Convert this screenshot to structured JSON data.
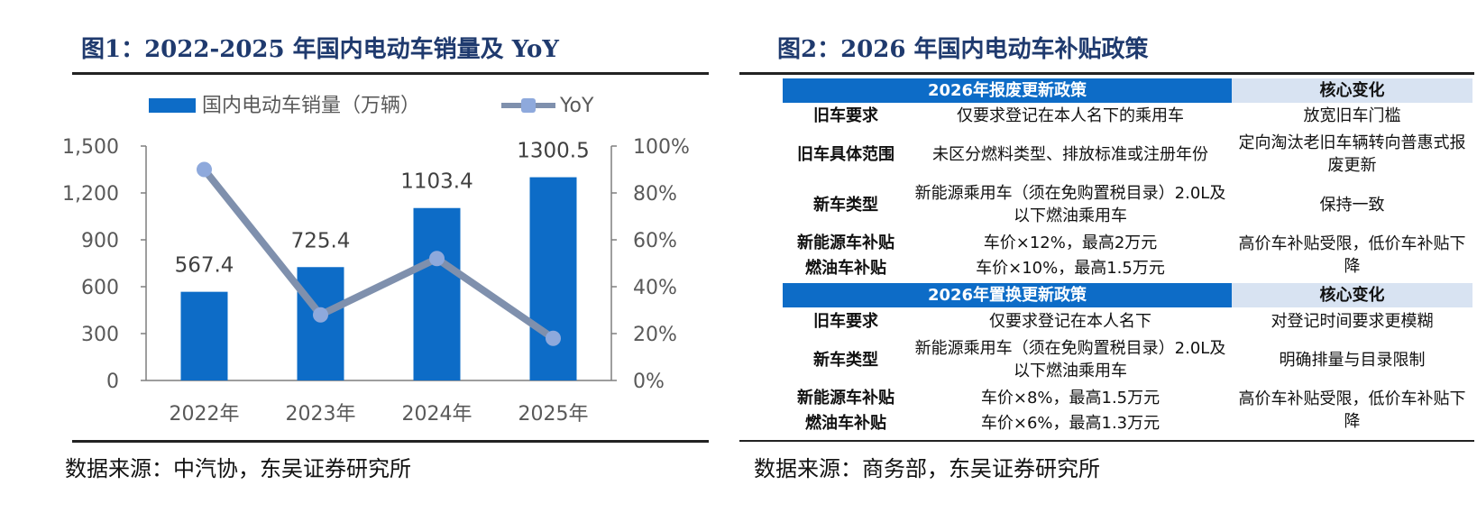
{
  "left": {
    "title": "图1：2022-2025 年国内电动车销量及 YoY",
    "source": "数据来源：中汽协，东吴证券研究所"
  },
  "right": {
    "title": "图2：2026 年国内电动车补贴政策",
    "source": "数据来源：商务部，东吴证券研究所",
    "table1": {
      "header": "2026年报废更新政策",
      "side_header": "核心变化",
      "rows": [
        {
          "label": "旧车要求",
          "policy": "仅要求登记在本人名下的乘用车",
          "change": "放宽旧车门槛"
        },
        {
          "label": "旧车具体范围",
          "policy": "未区分燃料类型、排放标准或注册年份",
          "change": "定向淘汰老旧车辆转向普惠式报废更新"
        },
        {
          "label": "新车类型",
          "policy": "新能源乘用车（须在免购置税目录）2.0L及以下燃油乘用车",
          "change": "保持一致"
        },
        {
          "label": "新能源车补贴",
          "policy": "车价×12%，最高2万元",
          "change": "高价车补贴受限，低价车补贴下降"
        },
        {
          "label": "燃油车补贴",
          "policy": "车价×10%，最高1.5万元",
          "change": ""
        }
      ]
    },
    "table2": {
      "header": "2026年置换更新政策",
      "side_header": "核心变化",
      "rows": [
        {
          "label": "旧车要求",
          "policy": "仅要求登记在本人名下",
          "change": "对登记时间要求更模糊"
        },
        {
          "label": "新车类型",
          "policy": "新能源乘用车（须在免购置税目录）2.0L及以下燃油乘用车",
          "change": "明确排量与目录限制"
        },
        {
          "label": "新能源车补贴",
          "policy": "车价×8%，最高1.5万元",
          "change": "高价车补贴受限，低价车补贴下降"
        },
        {
          "label": "燃油车补贴",
          "policy": "车价×6%，最高1.3万元",
          "change": ""
        }
      ]
    }
  },
  "colors": {
    "bar": "#0d6cc7",
    "line": "#7f90ad",
    "marker": "#8ea9dc",
    "title": "#1f3a6e",
    "header_blue": "#0d6cc7",
    "header_light": "#d8e3f2"
  },
  "chart_data": {
    "type": "bar",
    "categories": [
      "2022年",
      "2023年",
      "2024年",
      "2025年"
    ],
    "series": [
      {
        "name": "国内电动车销量（万辆）",
        "type": "bar",
        "axis": "left",
        "values": [
          567.4,
          725.4,
          1103.4,
          1300.5
        ],
        "labels": [
          "567.4",
          "725.4",
          "1103.4",
          "1300.5"
        ]
      },
      {
        "name": "YoY",
        "type": "line",
        "axis": "right",
        "values": [
          90,
          28,
          52,
          18
        ]
      }
    ],
    "y_left": {
      "range": [
        0,
        1500
      ],
      "ticks": [
        "0",
        "300",
        "600",
        "900",
        "1,200",
        "1,500"
      ]
    },
    "y_right": {
      "range": [
        0,
        100
      ],
      "ticks": [
        "0%",
        "20%",
        "40%",
        "60%",
        "80%",
        "100%"
      ]
    },
    "legend_position": "top",
    "grid": false
  }
}
